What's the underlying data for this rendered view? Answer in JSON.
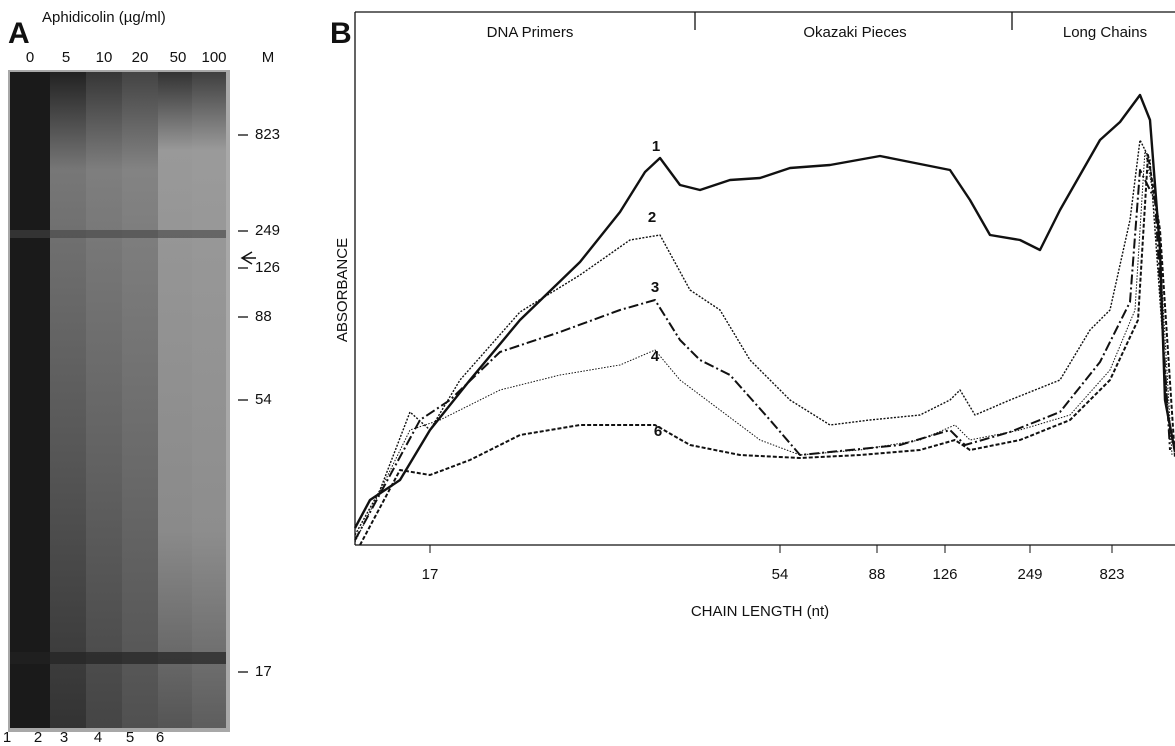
{
  "panel_a": {
    "letter": "A",
    "title": "Aphidicolin (µg/ml)",
    "lane_headers": [
      "0",
      "5",
      "10",
      "20",
      "50",
      "100",
      "M"
    ],
    "markers": [
      "823",
      "249",
      "126",
      "88",
      "54",
      "17"
    ],
    "lane_numbers": [
      "1",
      "2",
      "3",
      "4",
      "5",
      "6"
    ]
  },
  "panel_b": {
    "letter": "B",
    "sections": [
      "DNA Primers",
      "Okazaki Pieces",
      "Long Chains"
    ],
    "y_label": "ABSORBANCE",
    "x_ticks": [
      "17",
      "54",
      "88",
      "126",
      "249",
      "823"
    ],
    "x_label": "CHAIN LENGTH (nt)",
    "curve_labels": [
      "1",
      "2",
      "3",
      "4",
      "6"
    ]
  }
}
